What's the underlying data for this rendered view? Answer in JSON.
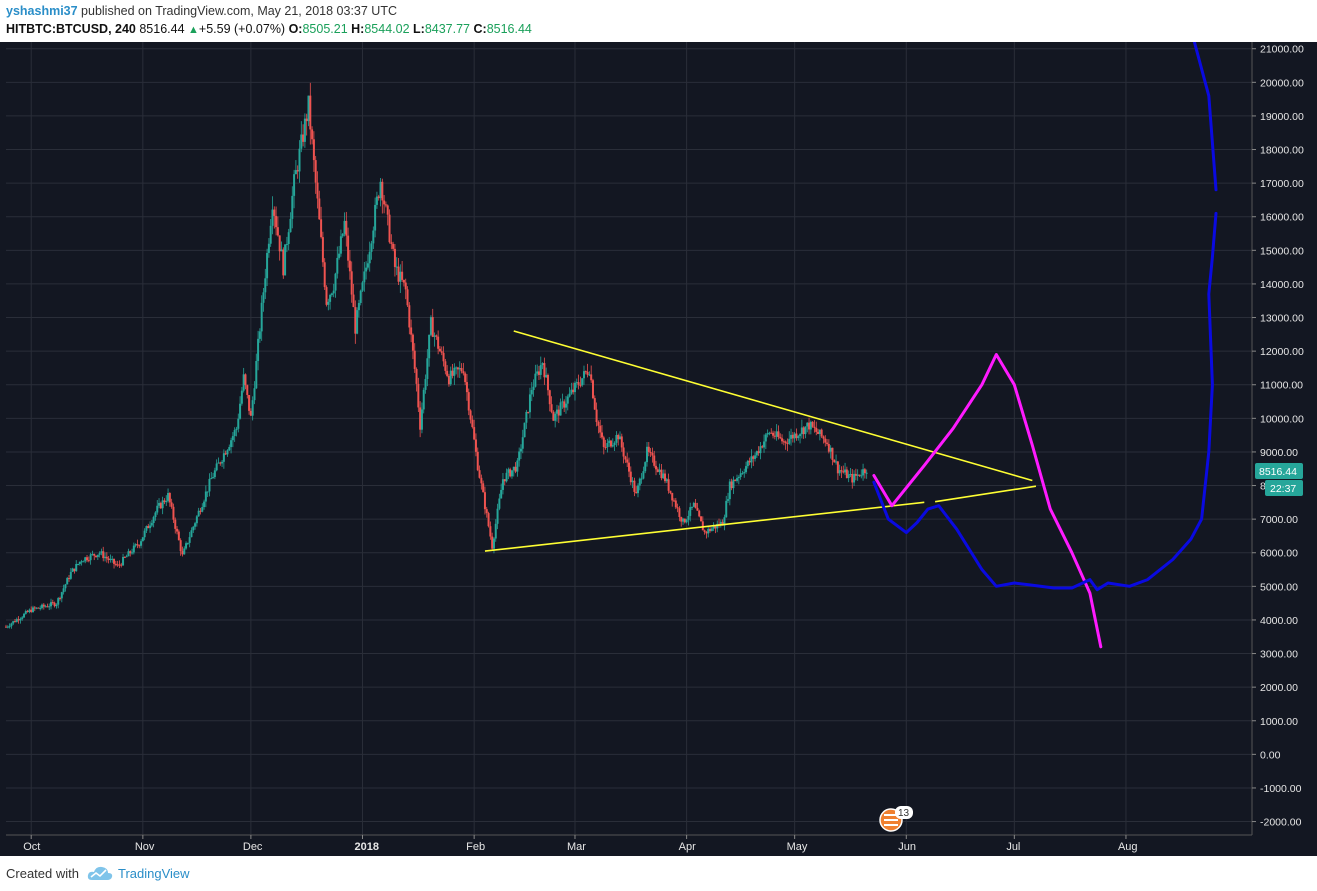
{
  "header": {
    "user": "yshashmi37",
    "published": " published on TradingView.com, May 21, 2018 03:37 UTC",
    "symbol": "HITBTC:BTCUSD, 240",
    "last": "8516.44",
    "change_arrow": "▲",
    "change": "+5.59 (+0.07%)",
    "o_label": "O:",
    "o_value": "8505.21",
    "h_label": "H:",
    "h_value": "8544.02",
    "l_label": "L:",
    "l_value": "8437.77",
    "c_label": "C:",
    "c_value": "8516.44"
  },
  "footer": {
    "created": "Created with",
    "brand": "TradingView"
  },
  "colors": {
    "background": "#131722",
    "up": "#26a69a",
    "down": "#ef5350",
    "trend": "#ffff33",
    "projection_pink": "#ff1aff",
    "projection_blue": "#0a0ae0",
    "price_tag": "#26a69a"
  },
  "event_badge": {
    "count": "13",
    "icon": "us-flag-icon"
  },
  "price_tag": {
    "price": "8516.44",
    "countdown": "22:37"
  },
  "chart_data": {
    "type": "candlestick",
    "title": "HITBTC:BTCUSD, 240",
    "y_ticks": [
      21000,
      20000,
      19000,
      18000,
      17000,
      16000,
      15000,
      14000,
      13000,
      12000,
      11000,
      10000,
      9000,
      8000,
      7000,
      6000,
      5000,
      4000,
      3000,
      2000,
      1000,
      0,
      -1000,
      -2000
    ],
    "y_tick_labels": [
      "21000.00",
      "20000.00",
      "19000.00",
      "18000.00",
      "17000.00",
      "16000.00",
      "15000.00",
      "14000.00",
      "13000.00",
      "12000.00",
      "11000.00",
      "10000.00",
      "9000.00",
      "8000.00",
      "7000.00",
      "6000.00",
      "5000.00",
      "4000.00",
      "3000.00",
      "2000.00",
      "1000.00",
      "0.00",
      "-1000.00",
      "-2000.00"
    ],
    "ylim": [
      -2400,
      21200
    ],
    "x_ticks": [
      {
        "label": "Oct",
        "date": "2017-10-01"
      },
      {
        "label": "Nov",
        "date": "2017-11-01"
      },
      {
        "label": "Dec",
        "date": "2017-12-01"
      },
      {
        "label": "2018",
        "date": "2018-01-01",
        "bold": true
      },
      {
        "label": "Feb",
        "date": "2018-02-01"
      },
      {
        "label": "Mar",
        "date": "2018-03-01"
      },
      {
        "label": "Apr",
        "date": "2018-04-01"
      },
      {
        "label": "May",
        "date": "2018-05-01"
      },
      {
        "label": "Jun",
        "date": "2018-06-01"
      },
      {
        "label": "Jul",
        "date": "2018-07-01"
      },
      {
        "label": "Aug",
        "date": "2018-08-01"
      }
    ],
    "xlim": [
      "2017-09-24",
      "2018-09-05"
    ],
    "price_path": [
      [
        "2017-09-24",
        3800
      ],
      [
        "2017-10-01",
        4300
      ],
      [
        "2017-10-08",
        4500
      ],
      [
        "2017-10-12",
        5400
      ],
      [
        "2017-10-15",
        5800
      ],
      [
        "2017-10-20",
        6000
      ],
      [
        "2017-10-25",
        5600
      ],
      [
        "2017-10-31",
        6300
      ],
      [
        "2017-11-05",
        7300
      ],
      [
        "2017-11-08",
        7700
      ],
      [
        "2017-11-12",
        5900
      ],
      [
        "2017-11-14",
        6500
      ],
      [
        "2017-11-20",
        8200
      ],
      [
        "2017-11-27",
        9700
      ],
      [
        "2017-11-29",
        11200
      ],
      [
        "2017-12-01",
        10000
      ],
      [
        "2017-12-07",
        16500
      ],
      [
        "2017-12-10",
        14500
      ],
      [
        "2017-12-13",
        17000
      ],
      [
        "2017-12-17",
        19300
      ],
      [
        "2017-12-22",
        13500
      ],
      [
        "2017-12-24",
        14000
      ],
      [
        "2017-12-27",
        15800
      ],
      [
        "2017-12-30",
        12700
      ],
      [
        "2018-01-02",
        14500
      ],
      [
        "2018-01-06",
        17100
      ],
      [
        "2018-01-10",
        14500
      ],
      [
        "2018-01-13",
        13800
      ],
      [
        "2018-01-16",
        11000
      ],
      [
        "2018-01-17",
        9800
      ],
      [
        "2018-01-20",
        12800
      ],
      [
        "2018-01-25",
        11200
      ],
      [
        "2018-01-29",
        11500
      ],
      [
        "2018-02-02",
        8600
      ],
      [
        "2018-02-06",
        6200
      ],
      [
        "2018-02-09",
        8200
      ],
      [
        "2018-02-13",
        8600
      ],
      [
        "2018-02-17",
        10900
      ],
      [
        "2018-02-20",
        11700
      ],
      [
        "2018-02-23",
        10000
      ],
      [
        "2018-02-27",
        10600
      ],
      [
        "2018-03-05",
        11500
      ],
      [
        "2018-03-07",
        10000
      ],
      [
        "2018-03-09",
        9100
      ],
      [
        "2018-03-13",
        9500
      ],
      [
        "2018-03-18",
        7700
      ],
      [
        "2018-03-21",
        9000
      ],
      [
        "2018-03-26",
        8200
      ],
      [
        "2018-03-31",
        6900
      ],
      [
        "2018-04-03",
        7400
      ],
      [
        "2018-04-06",
        6600
      ],
      [
        "2018-04-11",
        6900
      ],
      [
        "2018-04-13",
        8000
      ],
      [
        "2018-04-20",
        8900
      ],
      [
        "2018-04-24",
        9600
      ],
      [
        "2018-04-28",
        9300
      ],
      [
        "2018-05-05",
        9800
      ],
      [
        "2018-05-10",
        9300
      ],
      [
        "2018-05-13",
        8500
      ],
      [
        "2018-05-17",
        8200
      ],
      [
        "2018-05-21",
        8516
      ]
    ],
    "trendlines": [
      {
        "name": "upper-trendline",
        "points": [
          [
            "2018-02-12",
            12600
          ],
          [
            "2018-07-06",
            8150
          ]
        ]
      },
      {
        "name": "lower-trendline",
        "points": [
          [
            "2018-02-04",
            6050
          ],
          [
            "2018-06-06",
            7500
          ]
        ]
      },
      {
        "name": "lower-trendline-extension",
        "points": [
          [
            "2018-06-09",
            7520
          ],
          [
            "2018-07-07",
            7980
          ]
        ]
      }
    ],
    "projections": [
      {
        "name": "pink-projection",
        "points": [
          [
            "2018-05-23",
            8300
          ],
          [
            "2018-05-28",
            7400
          ],
          [
            "2018-06-06",
            8600
          ],
          [
            "2018-06-14",
            9700
          ],
          [
            "2018-06-22",
            11000
          ],
          [
            "2018-06-26",
            11900
          ],
          [
            "2018-07-01",
            11000
          ],
          [
            "2018-07-06",
            9200
          ],
          [
            "2018-07-11",
            7300
          ],
          [
            "2018-07-17",
            6000
          ],
          [
            "2018-07-22",
            4800
          ],
          [
            "2018-07-25",
            3200
          ]
        ]
      },
      {
        "name": "blue-projection",
        "points": [
          [
            "2018-05-23",
            8100
          ],
          [
            "2018-05-27",
            7000
          ],
          [
            "2018-06-01",
            6600
          ],
          [
            "2018-06-04",
            6900
          ],
          [
            "2018-06-07",
            7300
          ],
          [
            "2018-06-10",
            7400
          ],
          [
            "2018-06-15",
            6700
          ],
          [
            "2018-06-22",
            5500
          ],
          [
            "2018-06-26",
            5000
          ],
          [
            "2018-07-01",
            5100
          ],
          [
            "2018-07-05",
            5050
          ],
          [
            "2018-07-12",
            4950
          ],
          [
            "2018-07-17",
            4950
          ],
          [
            "2018-07-22",
            5200
          ],
          [
            "2018-07-24",
            4900
          ],
          [
            "2018-07-27",
            5100
          ],
          [
            "2018-08-02",
            5000
          ],
          [
            "2018-08-07",
            5200
          ],
          [
            "2018-08-14",
            5800
          ],
          [
            "2018-08-19",
            6400
          ],
          [
            "2018-08-22",
            7000
          ],
          [
            "2018-08-24",
            9000
          ],
          [
            "2018-08-25",
            11000
          ],
          [
            "2018-08-24",
            13700
          ],
          [
            "2018-08-25",
            14800
          ],
          [
            "2018-08-26",
            16100
          ]
        ]
      },
      {
        "name": "blue-projection-top",
        "points": [
          [
            "2018-08-20",
            21200
          ],
          [
            "2018-08-24",
            19600
          ],
          [
            "2018-08-26",
            16800
          ]
        ]
      }
    ]
  }
}
